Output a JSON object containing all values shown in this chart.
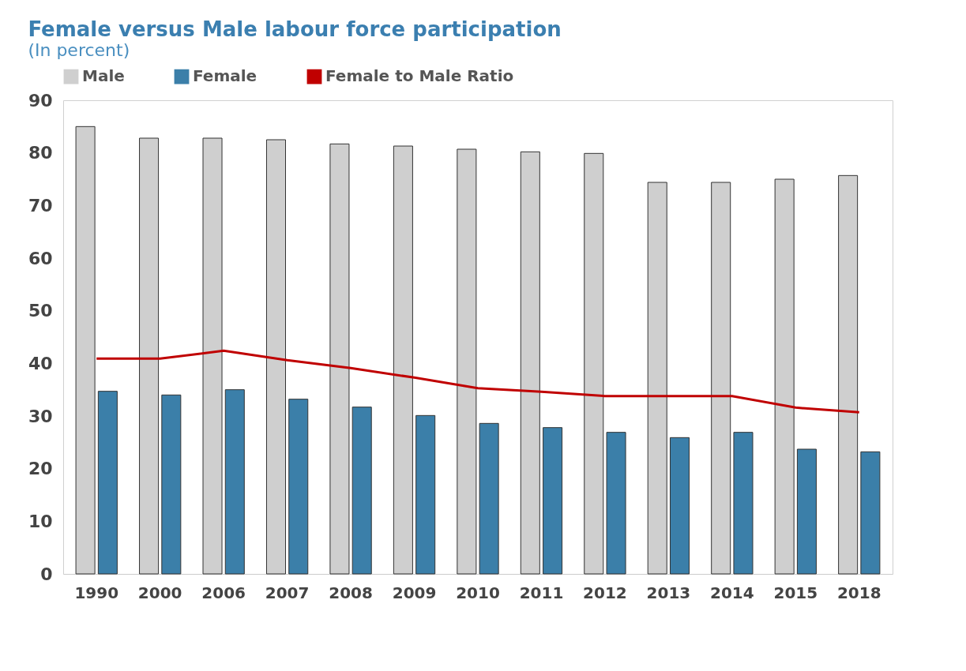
{
  "chart_data": {
    "type": "bar",
    "title": "Female versus Male labour force participation",
    "subtitle": "(In percent)",
    "categories": [
      "1990",
      "2000",
      "2006",
      "2007",
      "2008",
      "2009",
      "2010",
      "2011",
      "2012",
      "2013",
      "2014",
      "2015",
      "2018"
    ],
    "series": [
      {
        "name": "Male",
        "color": "#cfcfcf",
        "values": [
          85.0,
          82.8,
          82.8,
          82.5,
          81.7,
          81.3,
          80.7,
          80.2,
          79.9,
          74.4,
          74.4,
          75.0,
          75.7
        ]
      },
      {
        "name": "Female",
        "color": "#3b7fa9",
        "values": [
          34.7,
          34.0,
          35.0,
          33.2,
          31.7,
          30.1,
          28.6,
          27.8,
          26.9,
          25.9,
          26.9,
          23.7,
          23.2
        ]
      },
      {
        "name": "Female to Male Ratio",
        "type": "line",
        "color": "#c00000",
        "values": [
          40.9,
          40.9,
          42.4,
          40.6,
          39.1,
          37.3,
          35.3,
          34.6,
          33.8,
          33.8,
          33.8,
          31.6,
          30.7
        ]
      }
    ],
    "ylim": [
      0,
      90
    ],
    "yticks": [
      0,
      10,
      20,
      30,
      40,
      50,
      60,
      70,
      80,
      90
    ],
    "grid": false,
    "legend": "top"
  }
}
